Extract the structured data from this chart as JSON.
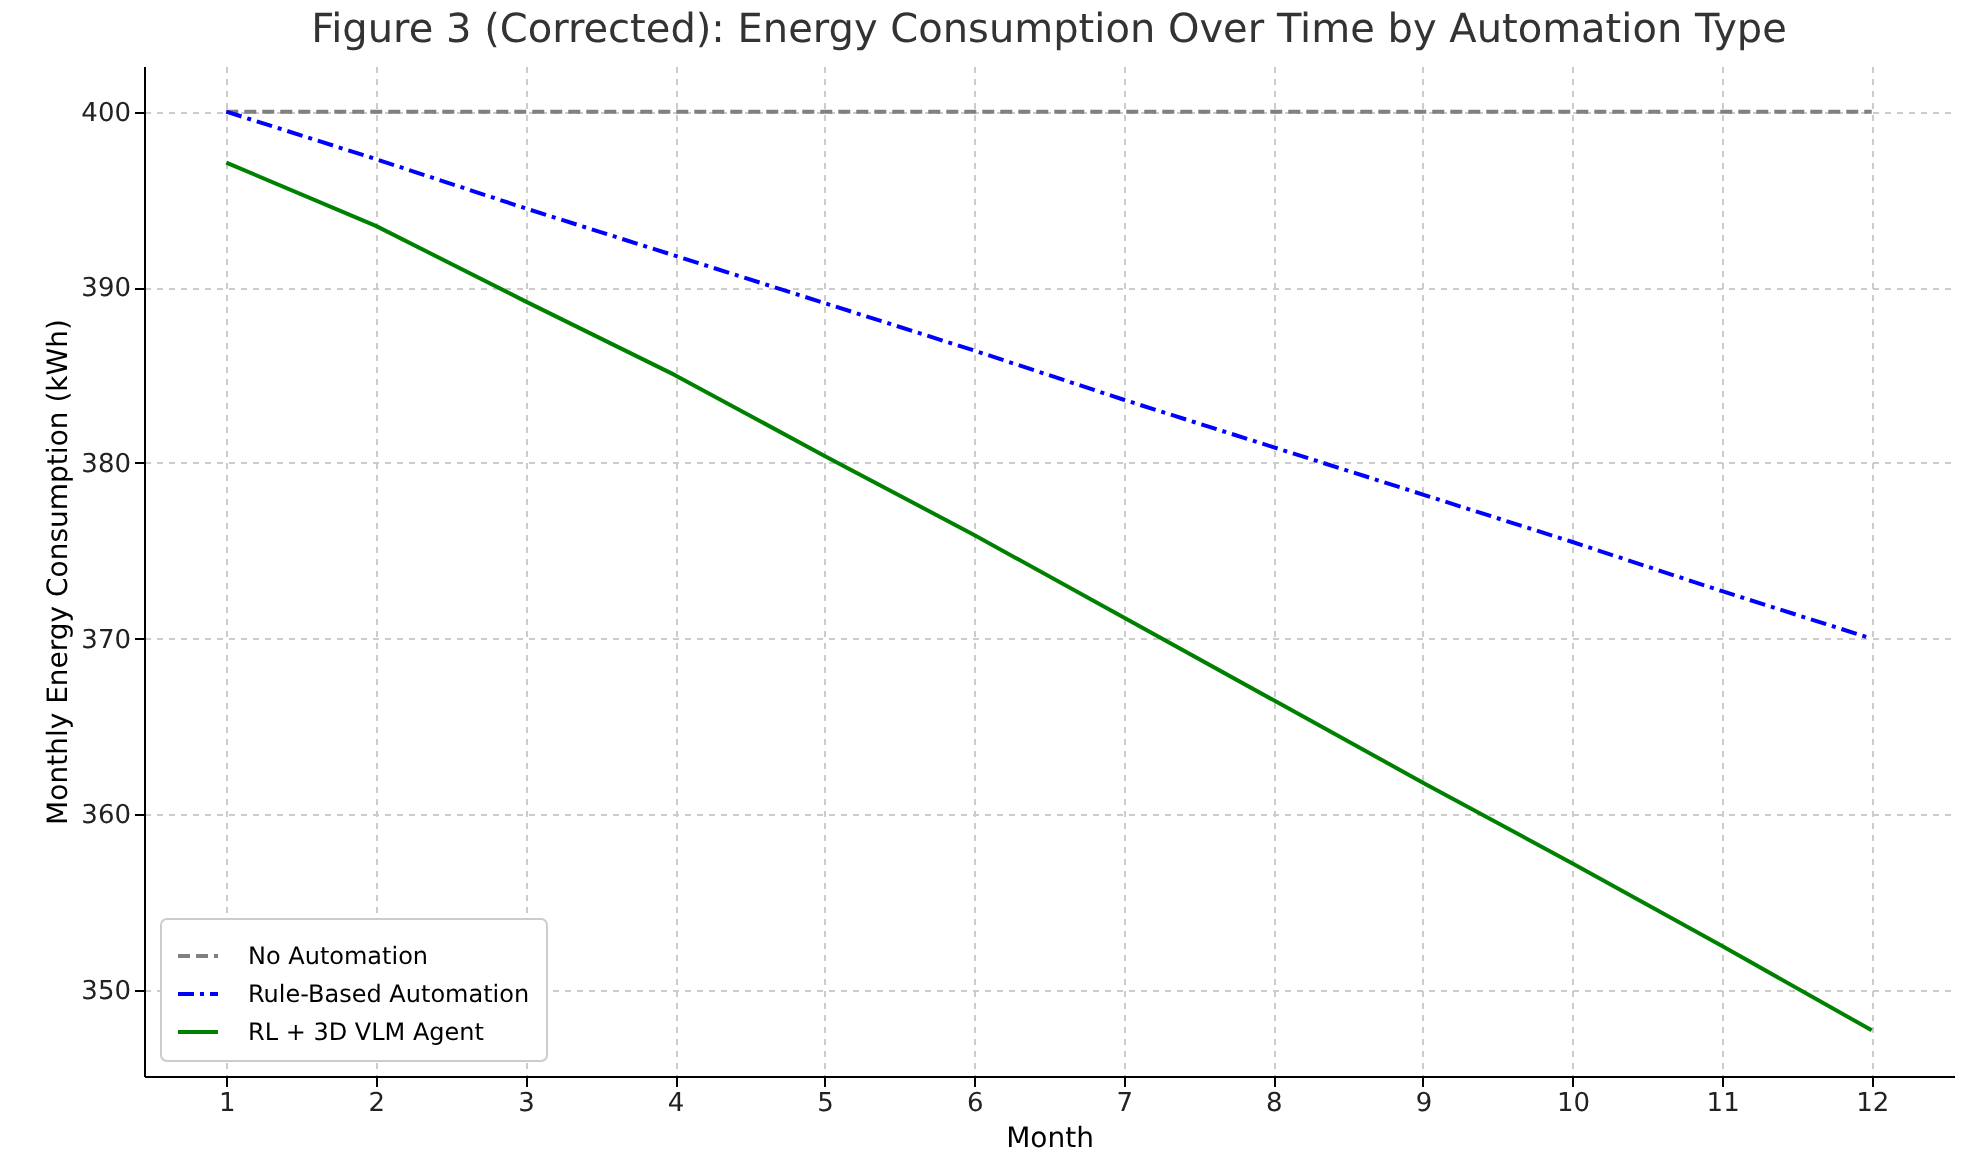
{
  "chart_data": {
    "type": "line",
    "title": "Figure 3 (Corrected): Energy Consumption Over Time by Automation Type",
    "xlabel": "Month",
    "ylabel": "Monthly Energy Consumption (kWh)",
    "x": [
      1,
      2,
      3,
      4,
      5,
      6,
      7,
      8,
      9,
      10,
      11,
      12
    ],
    "series": [
      {
        "name": "No Automation",
        "color": "#808080",
        "line_style": "dashed",
        "values": [
          400,
          400,
          400,
          400,
          400,
          400,
          400,
          400,
          400,
          400,
          400,
          400
        ]
      },
      {
        "name": "Rule-Based Automation",
        "color": "#0000ff",
        "line_style": "dashdot",
        "values": [
          400,
          397.3,
          394.5,
          391.8,
          389.1,
          386.4,
          383.6,
          380.9,
          378.2,
          375.5,
          372.7,
          370
        ]
      },
      {
        "name": "RL + 3D VLM Agent",
        "color": "#008000",
        "line_style": "solid",
        "values": [
          397.1,
          393.5,
          389.2,
          385,
          380.4,
          375.9,
          371.2,
          366.5,
          361.8,
          357.2,
          352.5,
          347.7
        ]
      }
    ],
    "xlim": [
      0.45,
      12.55
    ],
    "ylim": [
      345.1,
      402.6
    ],
    "xticks": [
      1,
      2,
      3,
      4,
      5,
      6,
      7,
      8,
      9,
      10,
      11,
      12
    ],
    "yticks": [
      350,
      360,
      370,
      380,
      390,
      400
    ],
    "grid": true,
    "legend": "bottom left"
  }
}
